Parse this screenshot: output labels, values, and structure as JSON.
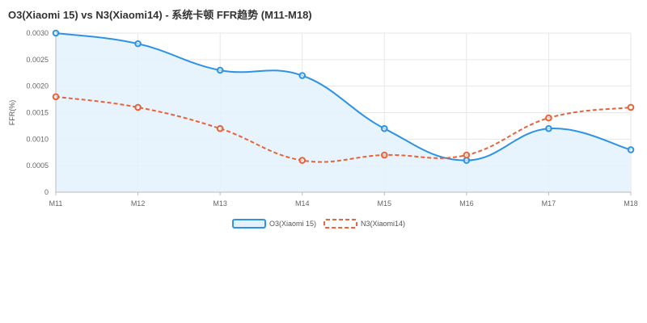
{
  "chart_data": {
    "type": "line",
    "title": "O3(Xiaomi 15) vs N3(Xiaomi14) - 系统卡顿 FFR趋势 (M11-M18)",
    "ylabel": "FFR(%)",
    "xlabel": "",
    "categories": [
      "M11",
      "M12",
      "M13",
      "M14",
      "M15",
      "M16",
      "M17",
      "M18"
    ],
    "y_ticks": [
      "0",
      "0.0005",
      "0.0010",
      "0.0015",
      "0.0020",
      "0.0025",
      "0.0030"
    ],
    "ylim": [
      0,
      0.003
    ],
    "grid": true,
    "legend_position": "bottom",
    "series": [
      {
        "name": "O3(Xiaomi 15)",
        "values": [
          0.003,
          0.0028,
          0.0023,
          0.0022,
          0.0012,
          0.0006,
          0.0012,
          0.0008
        ],
        "color": "#2e93e6",
        "fill": "#e3f2fd",
        "dashed": false,
        "filled": true
      },
      {
        "name": "N3(Xiaomi14)",
        "values": [
          0.0018,
          0.0016,
          0.0012,
          0.0006,
          0.0007,
          0.0007,
          0.0014,
          0.0016
        ],
        "color": "#e8623a",
        "dashed": true,
        "filled": false
      }
    ]
  }
}
